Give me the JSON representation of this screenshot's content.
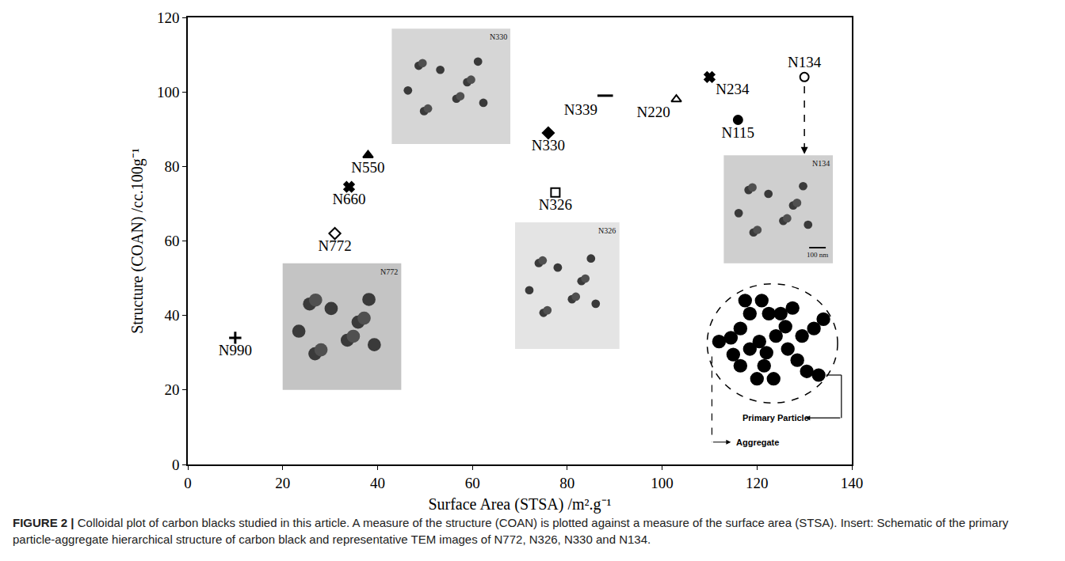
{
  "chart_data": {
    "type": "scatter",
    "x_label": "Surface Area (STSA) /m².g⁻¹",
    "y_label": "Structure (COAN) /cc.100g⁻¹",
    "xlim": [
      0,
      140
    ],
    "xticks": [
      0,
      20,
      40,
      60,
      80,
      100,
      120,
      140
    ],
    "ylim": [
      0,
      120
    ],
    "yticks": [
      0,
      20,
      40,
      60,
      80,
      100,
      120
    ],
    "grid": false,
    "color": "#000000",
    "data_labels": true,
    "series": [
      {
        "name": "N990",
        "x": [
          10
        ],
        "values": [
          34
        ],
        "marker": "plus"
      },
      {
        "name": "N772",
        "x": [
          31
        ],
        "values": [
          62
        ],
        "marker": "diamond-open"
      },
      {
        "name": "N660",
        "x": [
          34
        ],
        "values": [
          74.5
        ],
        "marker": "x"
      },
      {
        "name": "N550",
        "x": [
          38
        ],
        "values": [
          83
        ],
        "marker": "triangle-up"
      },
      {
        "name": "N330",
        "x": [
          76
        ],
        "values": [
          89
        ],
        "marker": "diamond"
      },
      {
        "name": "N326",
        "x": [
          77.5
        ],
        "values": [
          73
        ],
        "marker": "square-open"
      },
      {
        "name": "N339",
        "x": [
          88
        ],
        "values": [
          99
        ],
        "marker": "dash"
      },
      {
        "name": "N220",
        "x": [
          103
        ],
        "values": [
          98
        ],
        "marker": "triangle-up-open"
      },
      {
        "name": "N234",
        "x": [
          110
        ],
        "values": [
          104
        ],
        "marker": "x"
      },
      {
        "name": "N115",
        "x": [
          116
        ],
        "values": [
          92.5
        ],
        "marker": "circle"
      },
      {
        "name": "N134",
        "x": [
          130
        ],
        "values": [
          104
        ],
        "marker": "circle-open"
      }
    ],
    "insets": [
      {
        "label": "N330"
      },
      {
        "label": "N772"
      },
      {
        "label": "N326"
      },
      {
        "label": "N134",
        "scale_bar": "100 nm"
      }
    ],
    "schematic": {
      "labels": [
        "Primary Particle",
        "Aggregate"
      ]
    },
    "caption": {
      "label": "FIGURE 2 |",
      "text": "Colloidal plot of carbon blacks studied in this article. A measure of the structure (COAN) is plotted against a measure of the surface area (STSA). Insert: Schematic of the primary particle-aggregate hierarchical structure of carbon black and representative TEM images of N772, N326, N330 and N134."
    }
  }
}
